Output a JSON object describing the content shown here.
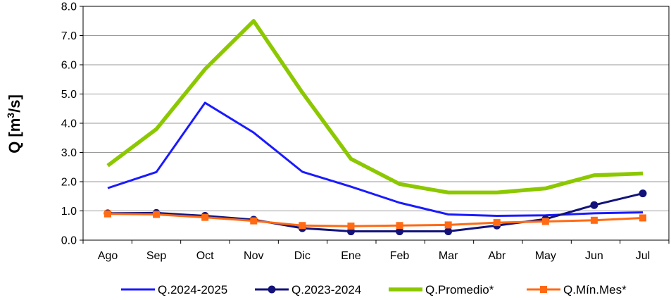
{
  "chart_data": {
    "type": "line",
    "ylabel": {
      "main": "Q [m",
      "sup": "3",
      "tail": "/s]"
    },
    "ylim": [
      0,
      8
    ],
    "yticks": [
      "0.0",
      "1.0",
      "2.0",
      "3.0",
      "4.0",
      "5.0",
      "6.0",
      "7.0",
      "8.0"
    ],
    "categories": [
      "Ago",
      "Sep",
      "Oct",
      "Nov",
      "Dic",
      "Ene",
      "Feb",
      "Mar",
      "Abr",
      "May",
      "Jun",
      "Jul"
    ],
    "grid": true,
    "legend_position": "bottom",
    "series": [
      {
        "name": "Q.2024-2025",
        "color": "#1a1aff",
        "marker": "none",
        "values": [
          1.78,
          2.33,
          4.7,
          3.68,
          2.34,
          1.83,
          1.28,
          0.88,
          0.83,
          0.85,
          0.92,
          0.95
        ]
      },
      {
        "name": "Q.2023-2024",
        "color": "#12127a",
        "marker": "circle",
        "values": [
          0.92,
          0.93,
          0.83,
          0.7,
          0.41,
          0.3,
          0.3,
          0.3,
          0.5,
          0.72,
          1.2,
          1.6
        ]
      },
      {
        "name": "Q.Promedio*",
        "color": "#8cc800",
        "marker": "none",
        "values": [
          2.55,
          3.8,
          5.85,
          7.5,
          5.05,
          2.78,
          1.92,
          1.63,
          1.63,
          1.77,
          2.22,
          2.28
        ]
      },
      {
        "name": "Q.Mín.Mes*",
        "color": "#ff6a13",
        "marker": "square",
        "values": [
          0.9,
          0.88,
          0.78,
          0.66,
          0.5,
          0.48,
          0.5,
          0.52,
          0.6,
          0.64,
          0.68,
          0.76
        ]
      }
    ]
  }
}
